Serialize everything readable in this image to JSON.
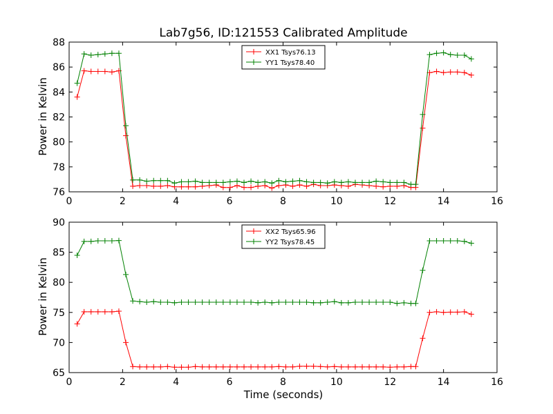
{
  "chart_data": [
    {
      "type": "line",
      "title": "Lab7g56, ID:121553 Calibrated Amplitude",
      "xlabel": "",
      "ylabel": "Power in Kelvin",
      "xlim": [
        0,
        16
      ],
      "ylim": [
        76,
        88
      ],
      "xticks": [
        0,
        2,
        4,
        6,
        8,
        10,
        12,
        14,
        16
      ],
      "yticks": [
        76,
        78,
        80,
        82,
        84,
        86,
        88
      ],
      "grid": false,
      "legend": "top-center",
      "x": [
        0.3,
        0.56,
        0.82,
        1.08,
        1.34,
        1.6,
        1.86,
        2.12,
        2.38,
        2.64,
        2.9,
        3.16,
        3.42,
        3.68,
        3.94,
        4.2,
        4.46,
        4.72,
        4.98,
        5.24,
        5.5,
        5.76,
        6.02,
        6.28,
        6.54,
        6.8,
        7.06,
        7.32,
        7.58,
        7.84,
        8.1,
        8.36,
        8.62,
        8.88,
        9.14,
        9.4,
        9.66,
        9.92,
        10.18,
        10.44,
        10.7,
        10.96,
        11.22,
        11.48,
        11.74,
        12.0,
        12.26,
        12.52,
        12.78,
        12.96,
        13.22,
        13.48,
        13.74,
        14.0,
        14.26,
        14.52,
        14.78,
        15.04
      ],
      "series": [
        {
          "name": "XX1 Tsys76.13",
          "color": "#ff0000",
          "values": [
            83.6,
            85.7,
            85.65,
            85.65,
            85.65,
            85.6,
            85.7,
            80.5,
            76.45,
            76.5,
            76.5,
            76.45,
            76.45,
            76.5,
            76.4,
            76.4,
            76.4,
            76.4,
            76.45,
            76.5,
            76.55,
            76.35,
            76.35,
            76.5,
            76.35,
            76.35,
            76.45,
            76.5,
            76.3,
            76.5,
            76.55,
            76.45,
            76.55,
            76.45,
            76.6,
            76.5,
            76.5,
            76.55,
            76.5,
            76.45,
            76.6,
            76.55,
            76.5,
            76.45,
            76.4,
            76.45,
            76.45,
            76.5,
            76.35,
            76.35,
            81.1,
            85.55,
            85.65,
            85.55,
            85.6,
            85.6,
            85.55,
            85.35
          ]
        },
        {
          "name": "YY1 Tsys78.40",
          "color": "#008000",
          "values": [
            84.7,
            87.05,
            86.95,
            87.0,
            87.05,
            87.1,
            87.1,
            81.3,
            76.95,
            76.95,
            76.85,
            76.9,
            76.9,
            76.9,
            76.7,
            76.8,
            76.8,
            76.85,
            76.75,
            76.75,
            76.75,
            76.75,
            76.8,
            76.85,
            76.75,
            76.85,
            76.75,
            76.8,
            76.7,
            76.9,
            76.8,
            76.85,
            76.9,
            76.8,
            76.75,
            76.75,
            76.7,
            76.8,
            76.75,
            76.8,
            76.75,
            76.75,
            76.75,
            76.85,
            76.8,
            76.75,
            76.75,
            76.75,
            76.6,
            76.6,
            82.2,
            87.0,
            87.1,
            87.15,
            87.0,
            86.95,
            86.95,
            86.65
          ]
        }
      ]
    },
    {
      "type": "line",
      "title": "",
      "xlabel": "Time (seconds)",
      "ylabel": "Power in Kelvin",
      "xlim": [
        0,
        16
      ],
      "ylim": [
        65,
        90
      ],
      "xticks": [
        0,
        2,
        4,
        6,
        8,
        10,
        12,
        14,
        16
      ],
      "yticks": [
        65,
        70,
        75,
        80,
        85,
        90
      ],
      "grid": false,
      "legend": "top-center",
      "x": [
        0.3,
        0.56,
        0.82,
        1.08,
        1.34,
        1.6,
        1.86,
        2.12,
        2.38,
        2.64,
        2.9,
        3.16,
        3.42,
        3.68,
        3.94,
        4.2,
        4.46,
        4.72,
        4.98,
        5.24,
        5.5,
        5.76,
        6.02,
        6.28,
        6.54,
        6.8,
        7.06,
        7.32,
        7.58,
        7.84,
        8.1,
        8.36,
        8.62,
        8.88,
        9.14,
        9.4,
        9.66,
        9.92,
        10.18,
        10.44,
        10.7,
        10.96,
        11.22,
        11.48,
        11.74,
        12.0,
        12.26,
        12.52,
        12.78,
        12.96,
        13.22,
        13.48,
        13.74,
        14.0,
        14.26,
        14.52,
        14.78,
        15.04
      ],
      "series": [
        {
          "name": "XX2 Tsys65.96",
          "color": "#ff0000",
          "values": [
            73.1,
            75.1,
            75.1,
            75.1,
            75.1,
            75.1,
            75.2,
            70.0,
            66.0,
            65.95,
            65.95,
            65.95,
            65.95,
            66.0,
            65.9,
            65.9,
            65.9,
            66.0,
            65.95,
            65.95,
            65.95,
            65.95,
            65.95,
            65.95,
            65.95,
            65.95,
            65.95,
            65.95,
            65.95,
            66.0,
            65.95,
            65.95,
            66.05,
            66.05,
            66.05,
            66.0,
            65.95,
            66.0,
            65.95,
            65.95,
            65.95,
            65.95,
            65.95,
            65.95,
            65.95,
            65.9,
            65.95,
            65.95,
            66.0,
            66.0,
            70.7,
            75.0,
            75.1,
            75.0,
            75.05,
            75.05,
            75.1,
            74.7
          ]
        },
        {
          "name": "YY2 Tsys78.45",
          "color": "#008000",
          "values": [
            84.5,
            86.8,
            86.8,
            86.9,
            86.9,
            86.9,
            86.95,
            81.3,
            76.9,
            76.8,
            76.7,
            76.8,
            76.7,
            76.7,
            76.6,
            76.7,
            76.7,
            76.7,
            76.7,
            76.7,
            76.7,
            76.7,
            76.7,
            76.7,
            76.7,
            76.7,
            76.6,
            76.7,
            76.6,
            76.7,
            76.7,
            76.7,
            76.7,
            76.7,
            76.6,
            76.6,
            76.7,
            76.8,
            76.6,
            76.6,
            76.7,
            76.7,
            76.7,
            76.7,
            76.7,
            76.7,
            76.5,
            76.6,
            76.5,
            76.5,
            82.0,
            86.9,
            86.9,
            86.9,
            86.9,
            86.9,
            86.8,
            86.5
          ]
        }
      ]
    }
  ]
}
